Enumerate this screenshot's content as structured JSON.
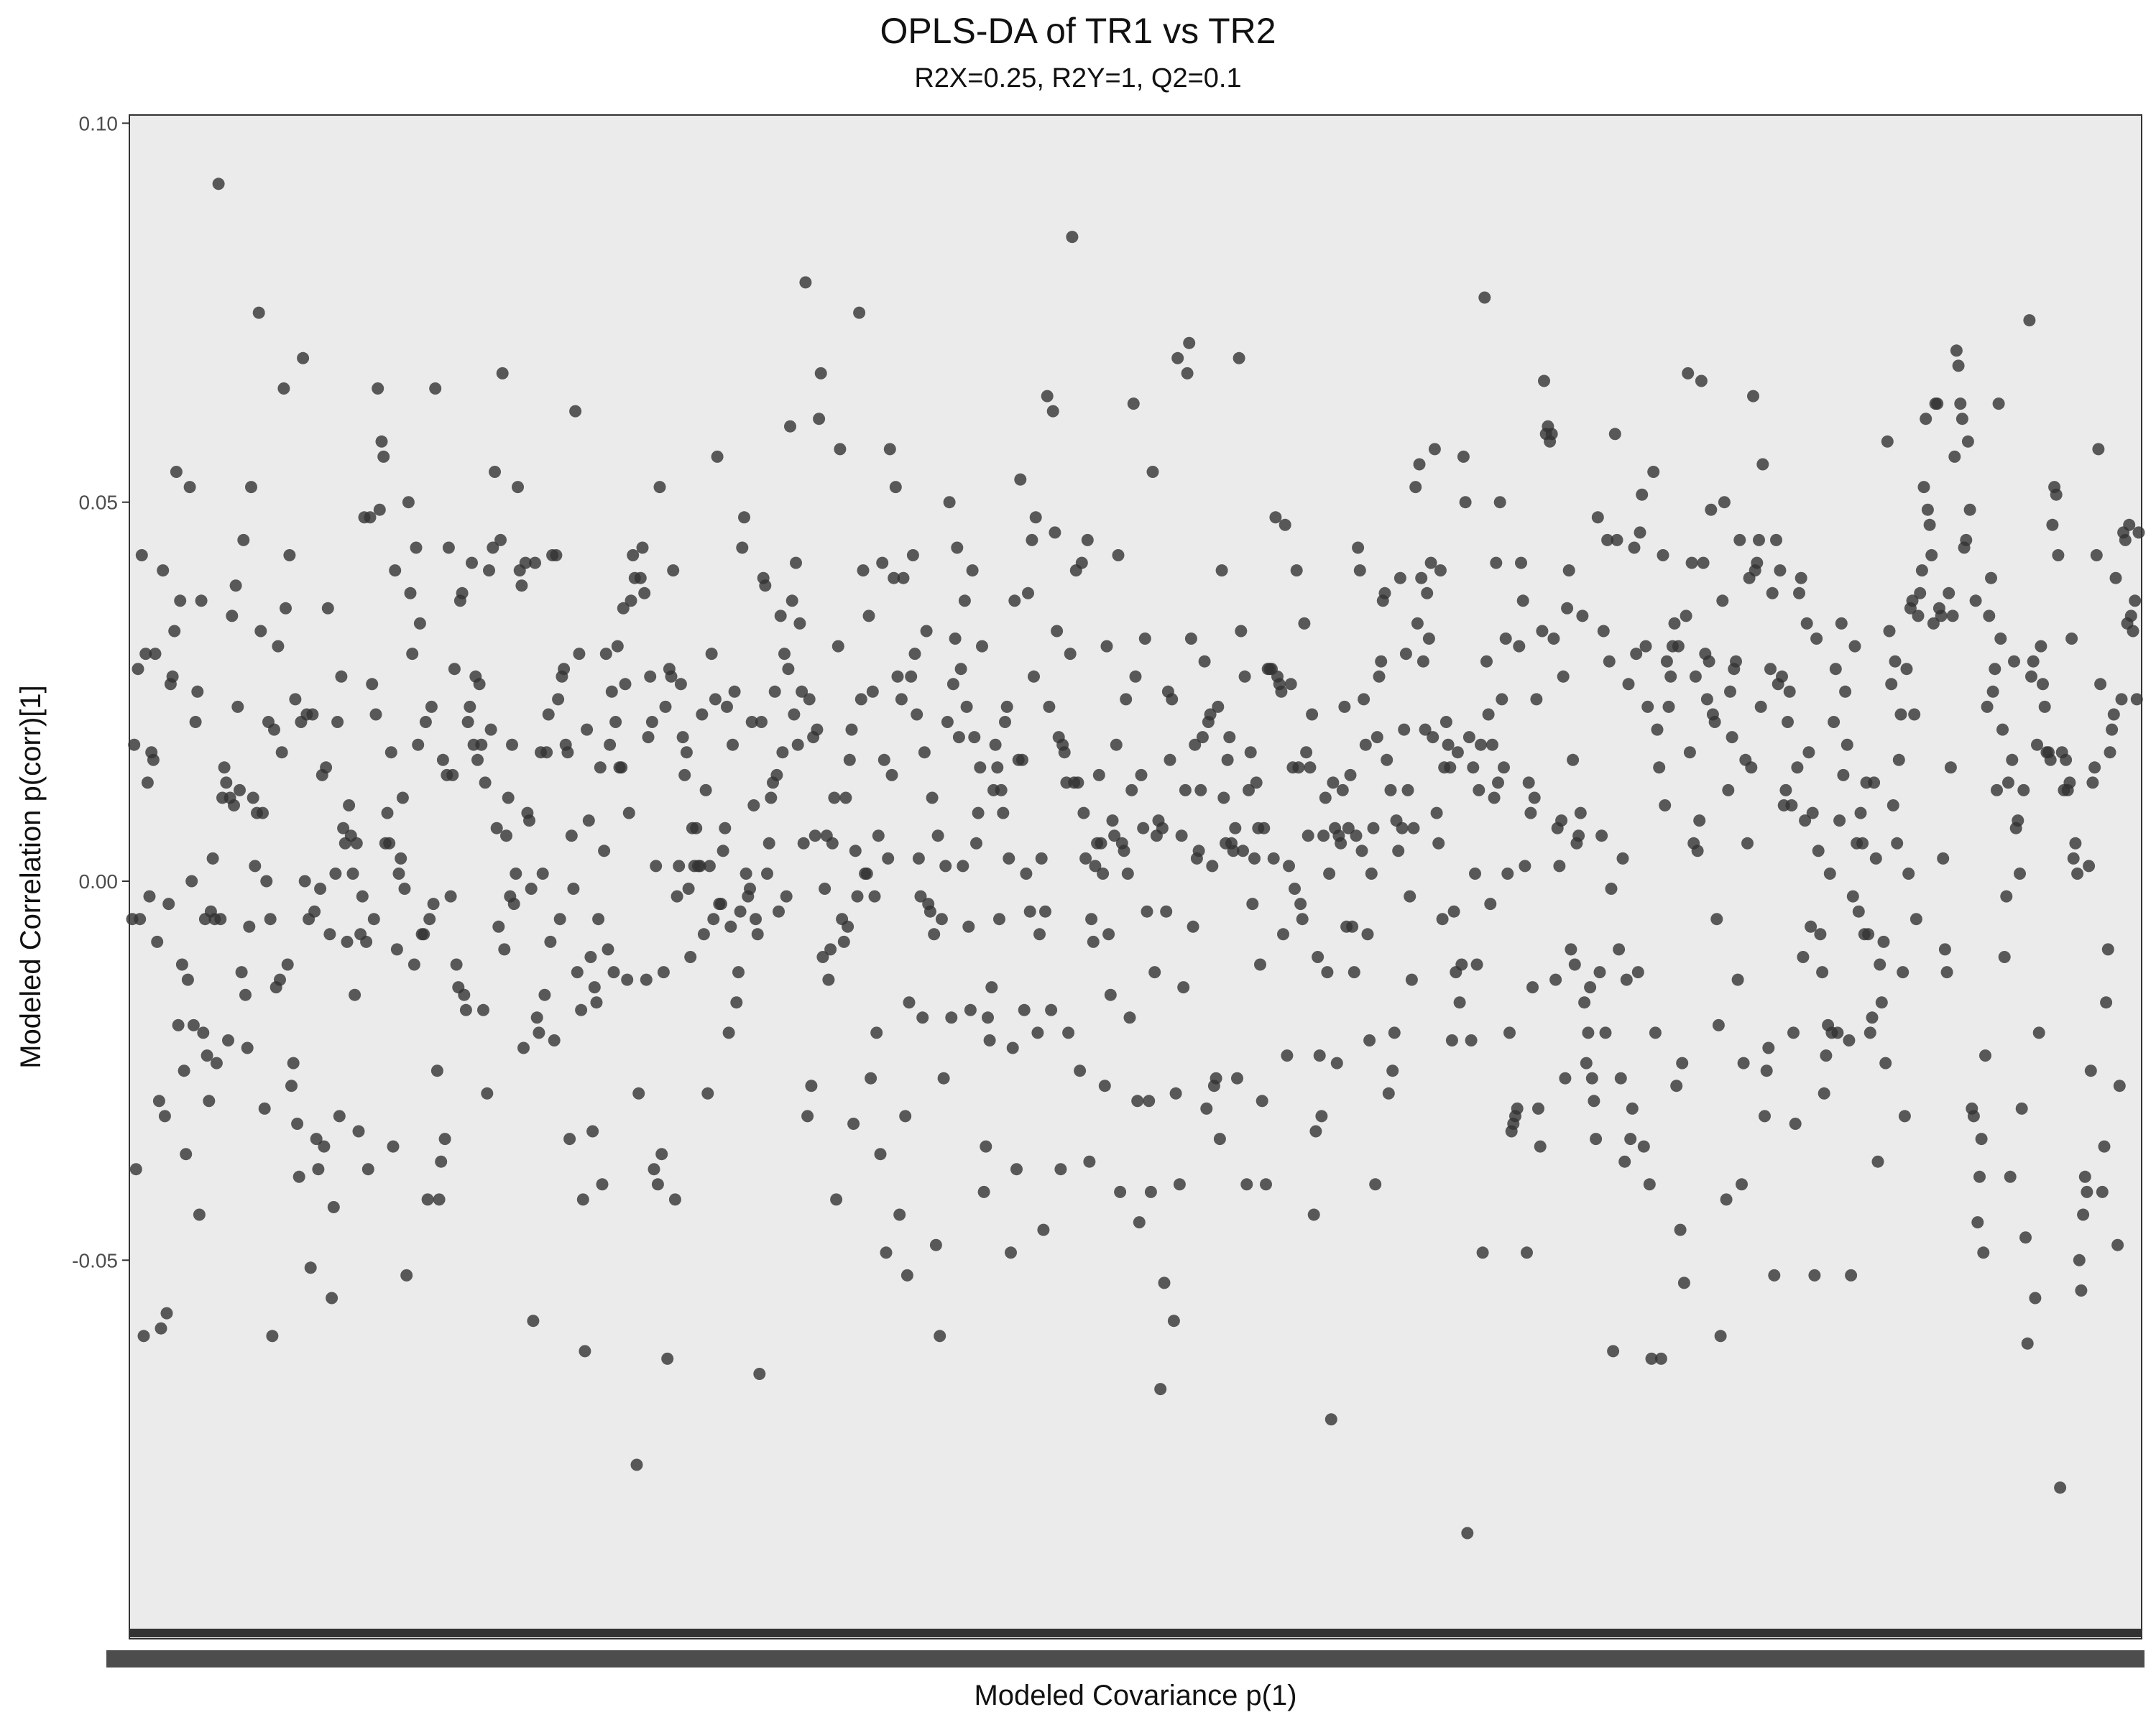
{
  "page": {
    "background": "#ffffff"
  },
  "chart_data": {
    "type": "scatter",
    "title": "OPLS-DA of TR1 vs TR2",
    "subtitle": "R2X=0.25, R2Y=1, Q2=0.1",
    "xlabel": "Modeled Covariance p(1)",
    "ylabel": "Modeled Correlation p(corr)[1]",
    "ylim": [
      -0.1,
      0.101
    ],
    "y_ticks": [
      0.1,
      0.05,
      0.0,
      -0.05
    ],
    "y_tick_labels": [
      "0.10",
      "0.05",
      "0.00",
      "-0.05"
    ],
    "x_ticks": "dense overlapping unreadable category labels",
    "grid": false,
    "panel_background": "#ebebeb",
    "point_color": "#333333",
    "point_alpha": 0.8,
    "legend": "none",
    "series": [
      {
        "values": [
          -0.005,
          0.018,
          -0.038,
          0.028,
          -0.005,
          0.043,
          -0.06,
          0.03,
          0.013,
          -0.002,
          0.017,
          0.016,
          0.03,
          -0.008,
          -0.029,
          -0.059,
          0.041,
          -0.031,
          -0.057,
          -0.003,
          0.026,
          0.027,
          0.033,
          0.054,
          -0.019,
          0.037,
          -0.011,
          -0.025,
          -0.036,
          -0.013,
          0.052,
          0,
          -0.019,
          0.021,
          0.025,
          -0.044,
          0.037,
          -0.02,
          -0.005,
          -0.023,
          -0.029,
          -0.004,
          0.003,
          -0.005,
          -0.024,
          0.092,
          -0.005,
          0.011,
          0.015,
          0.013,
          -0.021,
          0.011,
          0.035,
          0.01,
          0.039,
          0.023,
          0.012,
          -0.012,
          0.045,
          -0.015,
          -0.022,
          -0.006,
          0.052,
          0.011,
          0.002,
          0.009,
          0.075,
          0.033,
          0.009,
          -0.03,
          0,
          0.021,
          -0.005,
          -0.06,
          0.02,
          -0.014,
          0.031,
          -0.013,
          0.017,
          0.065,
          0.036,
          -0.011,
          0.043,
          -0.027,
          -0.024,
          0.024,
          -0.032,
          -0.039,
          0.021,
          0.069,
          0,
          0.022,
          -0.005,
          -0.051,
          0.022,
          -0.004,
          -0.034,
          -0.038,
          -0.001,
          0.014,
          -0.035,
          0.015,
          0.036,
          -0.007,
          -0.055,
          -0.043,
          0.001,
          0.021,
          -0.031,
          0.027,
          0.007,
          0.005,
          -0.008,
          0.01,
          0.006,
          0.001,
          -0.015,
          0.005,
          -0.033,
          -0.007,
          -0.002,
          0.048,
          -0.008,
          -0.038,
          0.048,
          0.026,
          -0.005,
          0.022,
          0.065,
          0.049,
          0.058,
          0.056,
          0.005,
          0.009,
          0.005,
          0.017,
          -0.035,
          0.041,
          -0.009,
          0.001,
          0.003,
          0.011,
          -0.001,
          -0.052,
          0.05,
          0.038,
          0.03,
          -0.011,
          0.044,
          0.018,
          0.034,
          -0.007,
          -0.007,
          0.021,
          -0.042,
          -0.005,
          0.023,
          -0.003,
          0.065,
          -0.025,
          -0.042,
          -0.037,
          0.016,
          -0.034,
          0.014,
          0.044,
          -0.002,
          0.014,
          0.028,
          -0.011,
          -0.014,
          0.037,
          0.038,
          -0.015,
          -0.017,
          0.021,
          0.023,
          0.042,
          0.018,
          0.027,
          0.016,
          0.026,
          0.018,
          -0.017,
          0.013,
          -0.028,
          0.041,
          0.02,
          0.044,
          0.054,
          0.007,
          -0.006,
          0.045,
          0.067,
          -0.009,
          0.006,
          0.011,
          -0.002,
          0.018,
          -0.003,
          0.001,
          0.052,
          0.041,
          0.039,
          -0.022,
          0.042,
          0.009,
          0.008,
          -0.001,
          -0.058,
          0.042,
          -0.018,
          -0.02,
          0.017,
          0.001,
          -0.015,
          0.017,
          0.022,
          -0.008,
          0.043,
          -0.021,
          0.043,
          0.024,
          -0.005,
          0.027,
          0.028,
          0.018,
          0.017,
          -0.034,
          0.006,
          -0.001,
          0.062,
          -0.012,
          0.03,
          -0.017,
          -0.042,
          -0.062,
          0.02,
          0.008,
          -0.01,
          -0.033,
          -0.014,
          -0.016,
          -0.005,
          0.015,
          -0.04,
          0.004,
          0.03,
          -0.009,
          0.018,
          0.025,
          -0.012,
          0.021,
          0.031,
          0.015,
          0.015,
          0.036,
          0.026,
          -0.013,
          0.009,
          0.037,
          0.043,
          0.04,
          -0.077,
          -0.028,
          0.04,
          0.044,
          0.038,
          -0.013,
          0.019,
          0.027,
          0.021,
          -0.038,
          0.002,
          -0.04,
          0.052,
          -0.036,
          -0.012,
          0.023,
          -0.063,
          0.028,
          0.027,
          0.041,
          -0.042,
          -0.002,
          0.002,
          0.026,
          0.019,
          0.014,
          0.017,
          -0.001,
          -0.01,
          0.007,
          0.002,
          0.007,
          0.002,
          0.002,
          0.022,
          -0.007,
          0.012,
          -0.028,
          0.002,
          0.03,
          -0.005,
          0.024,
          0.056,
          -0.003,
          -0.003,
          0.004,
          0.007,
          0.023,
          -0.02,
          -0.006,
          0.018,
          0.025,
          -0.016,
          -0.012,
          -0.004,
          0.044,
          0.048,
          0.001,
          -0.002,
          -0.001,
          0.021,
          0.01,
          -0.005,
          -0.007,
          -0.065,
          0.021,
          0.04,
          0.039,
          0.001,
          0.005,
          0.011,
          0.013,
          0.025,
          0.014,
          -0.004,
          0.035,
          0.017,
          0.03,
          -0.002,
          0.028,
          0.06,
          0.037,
          0.022,
          0.042,
          0.018,
          0.034,
          0.025,
          0.005,
          0.079,
          -0.031,
          0.024,
          -0.027,
          0.019,
          0.006,
          0.02,
          0.061,
          0.067,
          -0.01,
          -0.001,
          0.006,
          -0.013,
          -0.009,
          0.005,
          0.011,
          -0.042,
          0.031,
          0.057,
          -0.005,
          -0.008,
          0.011,
          -0.006,
          0.016,
          0.02,
          -0.032,
          0.004,
          -0.002,
          0.075,
          0.024,
          0.041,
          0.001,
          0.001,
          0.035,
          -0.026,
          0.025,
          -0.002,
          -0.02,
          0.006,
          -0.036,
          0.042,
          0.016,
          -0.049,
          0.003,
          0.057,
          0.014,
          0.04,
          0.052,
          0.027,
          -0.044,
          0.024,
          0.04,
          -0.031,
          -0.052,
          -0.016,
          0.027,
          0.043,
          0.03,
          0.022,
          0.003,
          -0.002,
          -0.018,
          0.017,
          0.033,
          -0.003,
          -0.004,
          0.011,
          -0.007,
          -0.048,
          0.006,
          -0.06,
          -0.005,
          -0.026,
          0.002,
          0.021,
          0.05,
          -0.018,
          0.026,
          0.032,
          0.044,
          0.019,
          0.028,
          0.002,
          0.037,
          0.023,
          -0.006,
          -0.017,
          0.041,
          0.019,
          0.005,
          0.009,
          0.015,
          0.031,
          -0.041,
          -0.035,
          -0.018,
          -0.021,
          -0.014,
          0.012,
          0.018,
          0.015,
          -0.005,
          0.012,
          0.009,
          0.021,
          0.023,
          0.003,
          -0.049,
          -0.022,
          0.037,
          -0.038,
          0.016,
          0.053,
          0.016,
          -0.017,
          0.001,
          0.038,
          -0.004,
          0.045,
          0.027,
          0.048,
          -0.02,
          -0.007,
          0.003,
          -0.046,
          -0.004,
          0.064,
          0.023,
          -0.017,
          0.062,
          0.046,
          0.033,
          0.019,
          -0.038,
          0.018,
          0.017,
          0.013,
          -0.02,
          0.03,
          0.085,
          0.013,
          0.041,
          0.013,
          -0.025,
          0.042,
          0.009,
          0.003,
          0.045,
          -0.037,
          -0.005,
          -0.008,
          0.002,
          0.005,
          0.014,
          0.005,
          0.001,
          -0.027,
          0.031,
          -0.007,
          -0.015,
          0.008,
          0.006,
          0.018,
          0.043,
          -0.041,
          0.005,
          0.004,
          0.024,
          0.001,
          -0.018,
          0.012,
          0.063,
          0.027,
          -0.029,
          -0.045,
          0.014,
          0.007,
          0.032,
          -0.004,
          -0.029,
          -0.041,
          0.054,
          -0.012,
          0.006,
          0.008,
          -0.067,
          0.007,
          -0.053,
          -0.004,
          0.025,
          0.016,
          0.024,
          -0.058,
          -0.028,
          0.069,
          -0.04,
          0.006,
          -0.014,
          0.012,
          0.067,
          0.071,
          0.032,
          -0.006,
          0.018,
          0.003,
          0.004,
          0.012,
          0.019,
          0.029,
          -0.03,
          0.021,
          0.022,
          0.002,
          -0.027,
          -0.026,
          0.023,
          -0.034,
          0.041,
          0.011,
          0.005,
          0.016,
          0.019,
          0.005,
          0.004,
          0.007,
          -0.026,
          0.069,
          0.033,
          0.004,
          0.027,
          -0.04,
          0.012,
          0.017,
          -0.003,
          0.003,
          0.013,
          0.007,
          -0.011,
          -0.029,
          0.007,
          -0.04,
          0.028,
          0.028,
          0.028,
          0.003,
          0.048,
          0.027,
          0.026,
          0.025,
          -0.007,
          0.047,
          -0.023,
          0.002,
          0.026,
          0.015,
          -0.001,
          0.041,
          0.015,
          -0.003,
          -0.005,
          0.034,
          0.017,
          0.006,
          0.015,
          0.022,
          -0.044,
          -0.033,
          -0.01,
          -0.023,
          -0.031,
          0.006,
          0.011,
          -0.012,
          0.001,
          -0.071,
          0.013,
          0.007,
          -0.024,
          0.006,
          0.005,
          0.012,
          0.023,
          -0.006,
          0.007,
          0.014,
          -0.006,
          -0.012,
          0.006,
          0.044,
          0.041,
          0.004,
          0.024,
          0.018,
          -0.007,
          -0.021,
          0.001,
          0.007,
          -0.04,
          0.019,
          0.027,
          0.029,
          0.037,
          0.038,
          0.016,
          -0.028,
          0.012,
          -0.025,
          -0.02,
          0.008,
          0.004,
          0.04,
          0.007,
          0.02,
          0.03,
          0.012,
          -0.002,
          -0.013,
          0.007,
          0.052,
          0.034,
          0.055,
          0.04,
          0.029,
          0.02,
          0.038,
          0.032,
          0.042,
          0.019,
          0.057,
          0.009,
          0.005,
          0.041,
          -0.005,
          0.015,
          0.021,
          0.018,
          0.015,
          -0.021,
          -0.004,
          -0.012,
          0.017,
          -0.016,
          -0.011,
          0.056,
          0.05,
          -0.086,
          0.019,
          -0.021,
          0.015,
          0.001,
          -0.011,
          0.012,
          0.018,
          -0.049,
          0.077,
          0.029,
          0.022,
          -0.003,
          0.018,
          0.011,
          0.042,
          0.013,
          0.05,
          0.024,
          0.015,
          0.032,
          0.001,
          -0.02,
          -0.033,
          -0.032,
          -0.031,
          -0.03,
          0.031,
          0.042,
          0.037,
          0.002,
          -0.049,
          0.013,
          0.009,
          -0.014,
          0.011,
          0.024,
          -0.03,
          -0.035,
          0.033,
          0.066,
          0.059,
          0.06,
          0.058,
          0.059,
          0.032,
          -0.013,
          0.007,
          0.002,
          0.008,
          0.027,
          -0.026,
          0.036,
          0.041,
          -0.009,
          0.016,
          -0.011,
          0.005,
          0.006,
          0.009,
          0.035,
          -0.016,
          -0.024,
          -0.02,
          -0.014,
          -0.026,
          -0.029,
          -0.034,
          0.048,
          -0.012,
          0.006,
          0.033,
          -0.02,
          0.045,
          0.029,
          -0.001,
          -0.062,
          0.059,
          0.045,
          -0.009,
          -0.026,
          0.003,
          -0.037,
          -0.013,
          0.026,
          -0.034,
          -0.03,
          0.044,
          0.03,
          -0.012,
          0.046,
          0.051,
          -0.035,
          0.031,
          0.023,
          -0.04,
          -0.063,
          0.054,
          -0.02,
          0.02,
          0.015,
          -0.063,
          0.043,
          0.01,
          0.029,
          0.023,
          0.027,
          0.031,
          0.034,
          -0.027,
          0.031,
          -0.046,
          -0.024,
          -0.053,
          0.035,
          0.067,
          0.017,
          0.042,
          0.005,
          0.027,
          0.004,
          0.008,
          0.066,
          0.042,
          0.03,
          0.024,
          0.029,
          0.049,
          0.022,
          0.021,
          -0.005,
          -0.019,
          -0.06,
          0.037,
          0.05,
          -0.042,
          0.012,
          0.025,
          0.019,
          0.028,
          0.029,
          -0.013,
          0.045,
          -0.04,
          -0.024,
          0.016,
          0.005,
          0.04,
          0.015,
          0.064,
          0.041,
          0.042,
          0.045,
          0.023,
          0.055,
          -0.031,
          -0.025,
          -0.022,
          0.028,
          0.038,
          -0.052,
          0.045,
          0.026,
          0.041,
          0.027,
          0.01,
          0.012,
          0.021,
          0.025,
          0.01,
          -0.02,
          -0.032,
          0.015,
          0.038,
          0.04,
          -0.01,
          0.008,
          0.034,
          0.017,
          -0.006,
          0.009,
          -0.052,
          0.032,
          0.004,
          -0.007,
          -0.012,
          -0.028,
          -0.023,
          -0.019,
          0.001,
          -0.02,
          0.021,
          0.028,
          -0.02,
          0.008,
          0.034,
          0.014,
          0.025,
          0.018,
          -0.021,
          -0.052,
          -0.002,
          0.031,
          0.005,
          -0.004,
          0.009,
          0.005,
          -0.007,
          0.013,
          -0.007,
          -0.02,
          -0.018,
          0.013,
          0.003,
          -0.037,
          -0.011,
          -0.016,
          -0.008,
          -0.024,
          0.058,
          0.033,
          0.026,
          0.01,
          0.029,
          0.005,
          0.016,
          0.022,
          -0.012,
          -0.031,
          0.028,
          0.001,
          0.036,
          0.037,
          0.022,
          -0.005,
          0.035,
          0.038,
          0.041,
          0.052,
          0.061,
          0.049,
          0.047,
          0.043,
          0.034,
          0.063,
          0.063,
          0.036,
          0.035,
          0.003,
          -0.009,
          -0.012,
          0.038,
          0.015,
          0.035,
          0.056,
          0.07,
          0.068,
          0.063,
          0.061,
          0.044,
          0.045,
          0.058,
          0.049,
          -0.03,
          -0.031,
          0.037,
          -0.045,
          -0.039,
          -0.034,
          -0.049,
          -0.023,
          0.023,
          0.035,
          0.04,
          0.025,
          0.028,
          0.012,
          0.063,
          0.032,
          0.02,
          -0.01,
          -0.002,
          0.013,
          -0.039,
          0.016,
          0.029,
          0.007,
          0.008,
          0.001,
          -0.03,
          0.012,
          -0.047,
          -0.061,
          0.074,
          0.027,
          0.029,
          -0.055,
          0.018,
          -0.02,
          0.031,
          0.026,
          0.023,
          0.017,
          0.017,
          0.016,
          0.047,
          0.052,
          0.051,
          0.043,
          -0.08,
          0.017,
          0.012,
          0.016,
          0.012,
          0.013,
          0.032,
          0.003,
          0.005,
          0.001,
          -0.05,
          -0.054,
          -0.044,
          -0.039,
          -0.041,
          0.002,
          -0.025,
          0.013,
          0.015,
          0.043,
          0.057,
          0.026,
          -0.041,
          -0.035,
          -0.016,
          -0.009,
          0.017,
          0.02,
          0.022,
          0.04,
          -0.048,
          -0.027,
          0.024,
          0.046,
          0.045,
          0.034,
          0.047,
          0.035,
          0.033,
          0.037,
          0.024,
          0.046
        ]
      }
    ]
  }
}
